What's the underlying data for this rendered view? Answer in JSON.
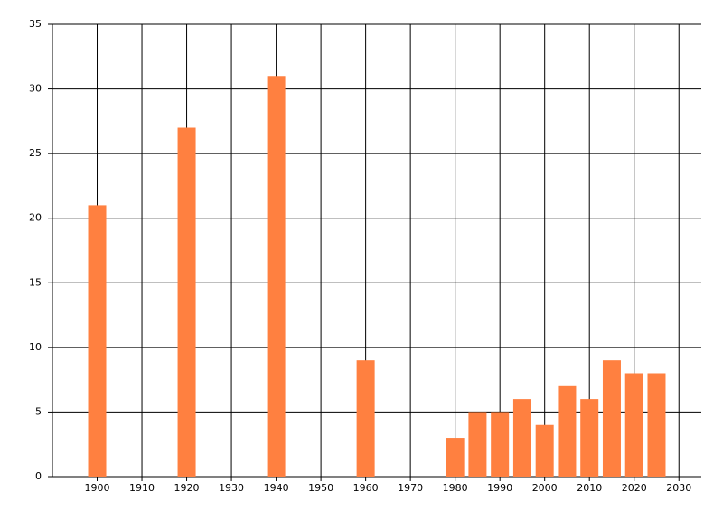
{
  "chart_data": {
    "type": "bar",
    "x": [
      1900,
      1920,
      1940,
      1960,
      1980,
      1985,
      1990,
      1995,
      2000,
      2005,
      2010,
      2015,
      2020,
      2025
    ],
    "values": [
      21,
      27,
      31,
      9,
      3,
      5,
      5,
      6,
      4,
      7,
      6,
      9,
      8,
      8
    ],
    "color": "#ff8040",
    "xlim": [
      1890,
      2035
    ],
    "xticks": [
      1900,
      1910,
      1920,
      1930,
      1940,
      1950,
      1960,
      1970,
      1980,
      1990,
      2000,
      2010,
      2020,
      2030
    ],
    "ylim": [
      0,
      35
    ],
    "yticks": [
      0,
      5,
      10,
      15,
      20,
      25,
      30,
      35
    ],
    "grid": true
  }
}
